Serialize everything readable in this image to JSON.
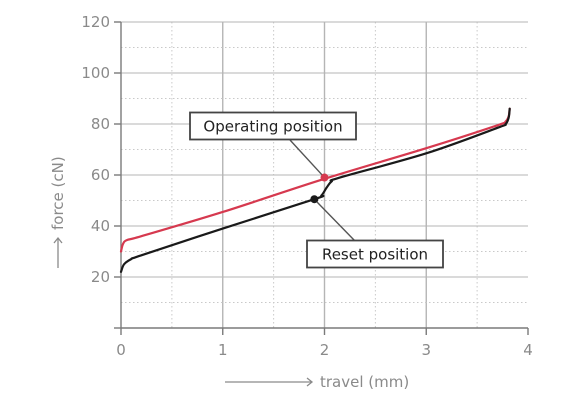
{
  "chart_data": {
    "type": "line",
    "xlabel": "travel (mm)",
    "ylabel": "force (cN)",
    "xlim": [
      0,
      4
    ],
    "ylim": [
      0,
      120
    ],
    "x_ticks": [
      0,
      1,
      2,
      3,
      4
    ],
    "y_ticks": [
      20,
      40,
      60,
      80,
      100,
      120
    ],
    "grid": "on",
    "series": [
      {
        "color": "#d6394f",
        "points": [
          [
            0.0,
            30
          ],
          [
            0.02,
            33
          ],
          [
            0.06,
            34.5
          ],
          [
            0.2,
            36
          ],
          [
            1.0,
            45.5
          ],
          [
            2.0,
            58.5
          ],
          [
            3.0,
            70.5
          ],
          [
            3.7,
            79.5
          ],
          [
            3.78,
            81
          ],
          [
            3.81,
            83
          ],
          [
            3.82,
            86
          ]
        ]
      },
      {
        "color": "#1a1a1a",
        "points": [
          [
            0.0,
            22
          ],
          [
            0.03,
            25
          ],
          [
            0.1,
            27
          ],
          [
            0.2,
            28.5
          ],
          [
            1.0,
            39
          ],
          [
            1.9,
            50.5
          ],
          [
            1.97,
            52
          ],
          [
            2.02,
            55
          ],
          [
            2.07,
            57.5
          ],
          [
            2.15,
            59
          ],
          [
            3.0,
            68.5
          ],
          [
            3.7,
            78.5
          ],
          [
            3.78,
            80
          ],
          [
            3.81,
            82.5
          ],
          [
            3.82,
            86
          ]
        ]
      }
    ],
    "annotations": [
      {
        "text": "Operating position",
        "x": 2.0,
        "y": 59,
        "color": "#d6394f"
      },
      {
        "text": "Reset position",
        "x": 1.9,
        "y": 50.5,
        "color": "#1a1a1a"
      }
    ]
  }
}
